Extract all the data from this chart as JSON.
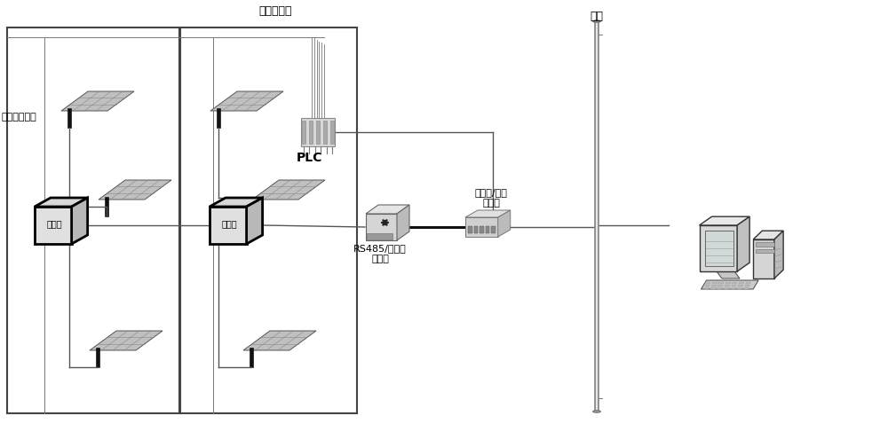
{
  "bg_color": "#ffffff",
  "labels": {
    "motor_control": "电机控制线",
    "solar_panel": "跟踪太阳能板",
    "fiber": "光纤",
    "plc": "PLC",
    "rs485": "RS485/以太网\n转换器",
    "ethernet_fiber": "以太网/光纤\n转换器",
    "junction_box": "汇流筱"
  },
  "layout": {
    "fig_w": 10.0,
    "fig_h": 5.04,
    "dpi": 100,
    "xlim": [
      0,
      10
    ],
    "ylim": [
      0,
      5.04
    ]
  }
}
